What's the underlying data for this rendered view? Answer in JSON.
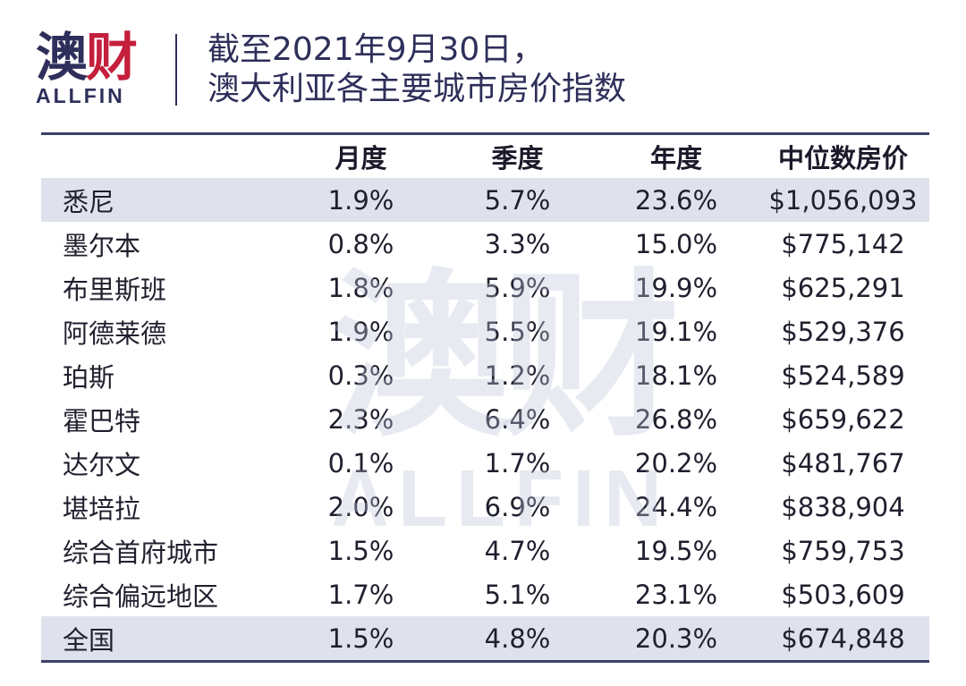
{
  "logo": {
    "main_a": "澳",
    "main_b": "财",
    "sub": "ALLFIN"
  },
  "title": {
    "line1": "截至2021年9月30日，",
    "line2": "澳大利亚各主要城市房价指数"
  },
  "watermark": {
    "main": "澳财",
    "sub": "ALLFIN"
  },
  "colors": {
    "brand_navy": "#2e2f5a",
    "brand_red": "#c41f3c",
    "row_shade": "#dfe2ec",
    "rule": "#3b4266"
  },
  "chart_data": {
    "type": "table",
    "title": "截至2021年9月30日，澳大利亚各主要城市房价指数",
    "columns": [
      "",
      "月度",
      "季度",
      "年度",
      "中位数房价"
    ],
    "rows": [
      [
        "悉尼",
        "1.9%",
        "5.7%",
        "23.6%",
        "$1,056,093"
      ],
      [
        "墨尔本",
        "0.8%",
        "3.3%",
        "15.0%",
        "$775,142"
      ],
      [
        "布里斯班",
        "1.8%",
        "5.9%",
        "19.9%",
        "$625,291"
      ],
      [
        "阿德莱德",
        "1.9%",
        "5.5%",
        "19.1%",
        "$529,376"
      ],
      [
        "珀斯",
        "0.3%",
        "1.2%",
        "18.1%",
        "$524,589"
      ],
      [
        "霍巴特",
        "2.3%",
        "6.4%",
        "26.8%",
        "$659,622"
      ],
      [
        "达尔文",
        "0.1%",
        "1.7%",
        "20.2%",
        "$481,767"
      ],
      [
        "堪培拉",
        "2.0%",
        "6.9%",
        "24.4%",
        "$838,904"
      ],
      [
        "综合首府城市",
        "1.5%",
        "4.7%",
        "19.5%",
        "$759,753"
      ],
      [
        "综合偏远地区",
        "1.7%",
        "5.1%",
        "23.1%",
        "$503,609"
      ],
      [
        "全国",
        "1.5%",
        "4.8%",
        "20.3%",
        "$674,848"
      ]
    ],
    "shaded_rows": [
      0,
      10
    ]
  }
}
